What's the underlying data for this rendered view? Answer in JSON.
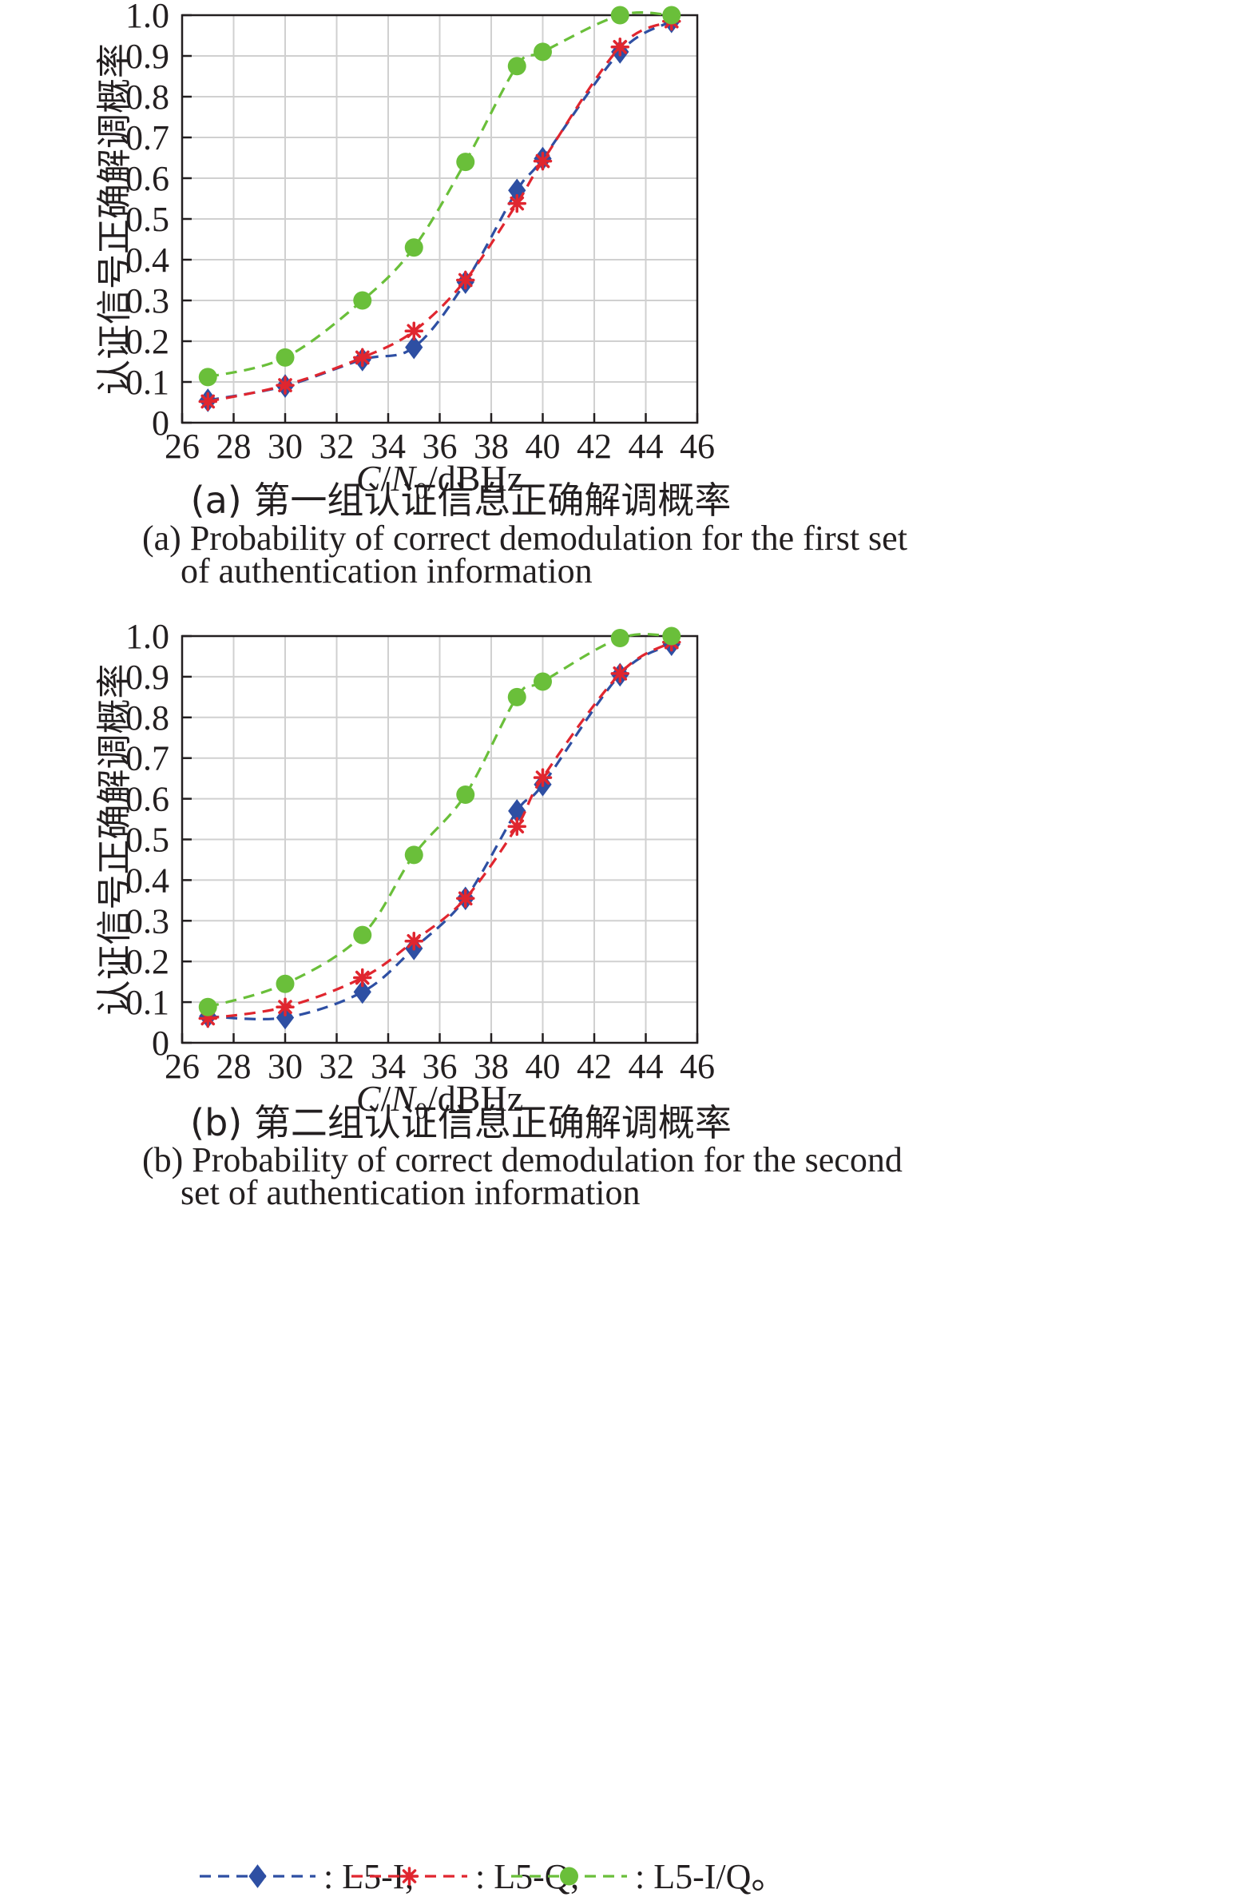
{
  "chart_data": [
    {
      "type": "line",
      "caption_zh": "(a) 第一组认证信息正确解调概率",
      "caption_en_line1": "(a) Probability of correct demodulation for the first set",
      "caption_en_line2": "of authentication information",
      "xlabel": "C/N0/dBHz",
      "ylabel": "认证信号正确解调概率",
      "xlim": [
        26,
        46
      ],
      "ylim": [
        0,
        1.0
      ],
      "xticks": [
        "26",
        "28",
        "30",
        "32",
        "34",
        "36",
        "38",
        "40",
        "42",
        "44",
        "46"
      ],
      "yticks": [
        "0",
        "0.1",
        "0.2",
        "0.3",
        "0.4",
        "0.5",
        "0.6",
        "0.7",
        "0.8",
        "0.9",
        "1.0"
      ],
      "grid": true,
      "x": [
        27,
        30,
        33,
        35,
        37,
        39,
        40,
        43,
        45
      ],
      "series": [
        {
          "name": "L5-I",
          "color": "#2e4fa3",
          "marker": "diamond",
          "values": [
            0.055,
            0.09,
            0.155,
            0.185,
            0.345,
            0.57,
            0.648,
            0.91,
            0.985
          ]
        },
        {
          "name": "L5-Q",
          "color": "#e0262f",
          "marker": "asterisk",
          "values": [
            0.052,
            0.092,
            0.16,
            0.225,
            0.35,
            0.538,
            0.642,
            0.922,
            0.985
          ]
        },
        {
          "name": "L5-I/Q",
          "color": "#6abf3a",
          "marker": "circle",
          "values": [
            0.112,
            0.16,
            0.3,
            0.43,
            0.64,
            0.875,
            0.91,
            1.0,
            1.0
          ]
        }
      ]
    },
    {
      "type": "line",
      "caption_zh": "(b) 第二组认证信息正确解调概率",
      "caption_en_line1": "(b) Probability of correct demodulation for the second",
      "caption_en_line2": "set of authentication information",
      "xlabel": "C/N0/dBHz",
      "ylabel": "认证信号正确解调概率",
      "xlim": [
        26,
        46
      ],
      "ylim": [
        0,
        1.0
      ],
      "xticks": [
        "26",
        "28",
        "30",
        "32",
        "34",
        "36",
        "38",
        "40",
        "42",
        "44",
        "46"
      ],
      "yticks": [
        "0",
        "0.1",
        "0.2",
        "0.3",
        "0.4",
        "0.5",
        "0.6",
        "0.7",
        "0.8",
        "0.9",
        "1.0"
      ],
      "grid": true,
      "x": [
        27,
        30,
        33,
        35,
        37,
        39,
        40,
        43,
        45
      ],
      "series": [
        {
          "name": "L5-I",
          "color": "#2e4fa3",
          "marker": "diamond",
          "values": [
            0.065,
            0.062,
            0.125,
            0.232,
            0.355,
            0.57,
            0.635,
            0.905,
            0.98
          ]
        },
        {
          "name": "L5-Q",
          "color": "#e0262f",
          "marker": "asterisk",
          "values": [
            0.06,
            0.088,
            0.16,
            0.25,
            0.355,
            0.532,
            0.652,
            0.908,
            0.985
          ]
        },
        {
          "name": "L5-I/Q",
          "color": "#6abf3a",
          "marker": "circle",
          "values": [
            0.088,
            0.145,
            0.265,
            0.462,
            0.61,
            0.85,
            0.888,
            0.995,
            1.0
          ]
        }
      ]
    }
  ],
  "legend": {
    "placement": "bottom",
    "items": [
      {
        "label": ": L5-I;",
        "color": "#2e4fa3",
        "marker": "diamond"
      },
      {
        "label": ": L5-Q;",
        "color": "#e0262f",
        "marker": "asterisk"
      },
      {
        "label": ": L5-I/Q。",
        "color": "#6abf3a",
        "marker": "circle"
      }
    ]
  }
}
